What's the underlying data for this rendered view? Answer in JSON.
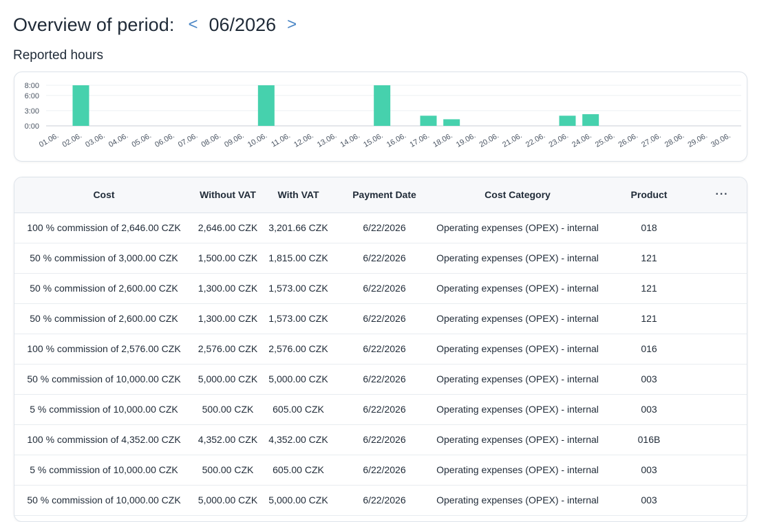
{
  "header": {
    "title": "Overview of period:",
    "prev_label": "<",
    "period": "06/2026",
    "next_label": ">"
  },
  "chart_section": {
    "title": "Reported hours"
  },
  "chart_data": {
    "type": "bar",
    "title": "",
    "xlabel": "",
    "ylabel": "",
    "y_tick_labels": [
      "8:00",
      "6:00",
      "3:00",
      "0:00"
    ],
    "y_ticks": [
      8,
      6,
      3,
      0
    ],
    "ylim": [
      0,
      8
    ],
    "grid": true,
    "color": "#46d1ad",
    "categories": [
      "01.06.",
      "02.06.",
      "03.06.",
      "04.06.",
      "05.06.",
      "06.06.",
      "07.06.",
      "08.06.",
      "09.06.",
      "10.06.",
      "11.06.",
      "12.06.",
      "13.06.",
      "14.06.",
      "15.06.",
      "16.06.",
      "17.06.",
      "18.06.",
      "19.06.",
      "20.06.",
      "21.06.",
      "22.06.",
      "23.06.",
      "24.06.",
      "25.06.",
      "26.06.",
      "27.06.",
      "28.06.",
      "29.06.",
      "30.06."
    ],
    "values": [
      0,
      8,
      0,
      0,
      0,
      0,
      0,
      0,
      0,
      8,
      0,
      0,
      0,
      0,
      8,
      0,
      2,
      1.3,
      0,
      0,
      0,
      0,
      2,
      2.3,
      0,
      0,
      0,
      0,
      0,
      0
    ]
  },
  "table": {
    "columns": [
      "Cost",
      "Without VAT",
      "With VAT",
      "Payment Date",
      "Cost Category",
      "Product"
    ],
    "menu_label": "···",
    "rows": [
      [
        "100 % commission of 2,646.00 CZK",
        "2,646.00 CZK",
        "3,201.66 CZK",
        "6/22/2026",
        "Operating expenses (OPEX) - internal",
        "018"
      ],
      [
        "50 % commission of 3,000.00 CZK",
        "1,500.00 CZK",
        "1,815.00 CZK",
        "6/22/2026",
        "Operating expenses (OPEX) - internal",
        "121"
      ],
      [
        "50 % commission of 2,600.00 CZK",
        "1,300.00 CZK",
        "1,573.00 CZK",
        "6/22/2026",
        "Operating expenses (OPEX) - internal",
        "121"
      ],
      [
        "50 % commission of 2,600.00 CZK",
        "1,300.00 CZK",
        "1,573.00 CZK",
        "6/22/2026",
        "Operating expenses (OPEX) - internal",
        "121"
      ],
      [
        "100 % commission of 2,576.00 CZK",
        "2,576.00 CZK",
        "2,576.00 CZK",
        "6/22/2026",
        "Operating expenses (OPEX) - internal",
        "016"
      ],
      [
        "50 % commission of 10,000.00 CZK",
        "5,000.00 CZK",
        "5,000.00 CZK",
        "6/22/2026",
        "Operating expenses (OPEX) - internal",
        "003"
      ],
      [
        "5 % commission of 10,000.00 CZK",
        "500.00 CZK",
        "605.00 CZK",
        "6/22/2026",
        "Operating expenses (OPEX) - internal",
        "003"
      ],
      [
        "100 % commission of 4,352.00 CZK",
        "4,352.00 CZK",
        "4,352.00 CZK",
        "6/22/2026",
        "Operating expenses (OPEX) - internal",
        "016B"
      ],
      [
        "5 % commission of 10,000.00 CZK",
        "500.00 CZK",
        "605.00 CZK",
        "6/22/2026",
        "Operating expenses (OPEX) - internal",
        "003"
      ],
      [
        "50 % commission of 10,000.00 CZK",
        "5,000.00 CZK",
        "5,000.00 CZK",
        "6/22/2026",
        "Operating expenses (OPEX) - internal",
        "003"
      ]
    ]
  }
}
